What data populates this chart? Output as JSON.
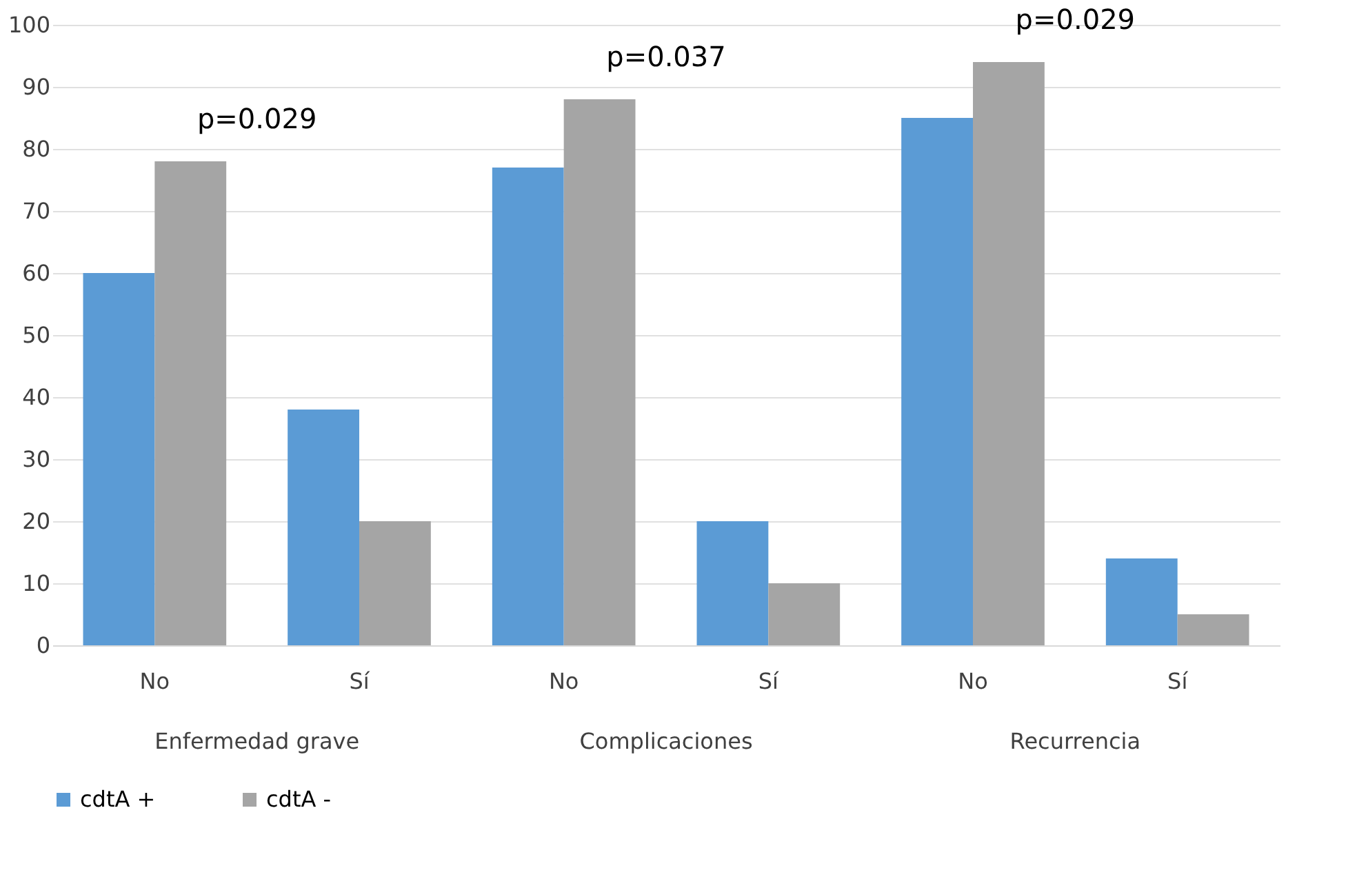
{
  "chart_data": {
    "type": "bar",
    "categories": [
      "No",
      "Sí",
      "No",
      "Sí",
      "No",
      "Sí"
    ],
    "series": [
      {
        "name": "cdtA +",
        "color": "#5b9bd5",
        "values": [
          60,
          38,
          77,
          20,
          85,
          14
        ]
      },
      {
        "name": "cdtA -",
        "color": "#a5a5a5",
        "values": [
          78,
          20,
          88,
          10,
          94,
          5
        ]
      }
    ],
    "ylim": [
      0,
      100
    ],
    "yticks": [
      0,
      10,
      20,
      30,
      40,
      50,
      60,
      70,
      80,
      90,
      100
    ],
    "grid": "y",
    "legend": "bottom",
    "annotations": [
      "Enfermedad grave",
      "Complicaciones",
      "Recurrencia",
      "p=0.029",
      "p=0.037",
      "p=0.029"
    ]
  }
}
